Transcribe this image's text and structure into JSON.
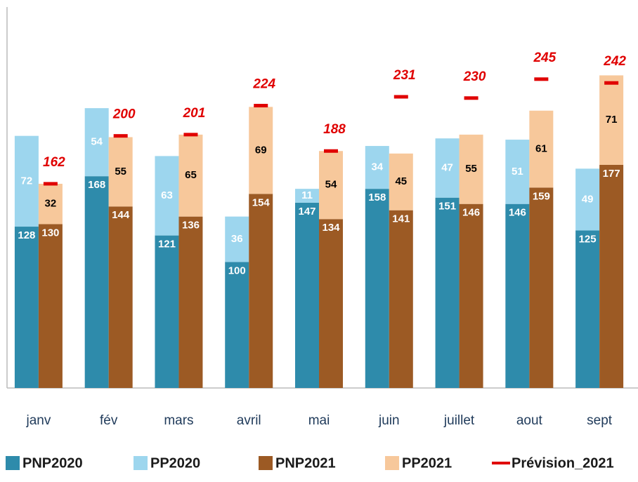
{
  "chart_data": {
    "type": "bar",
    "categories": [
      "janv",
      "fév",
      "mars",
      "avril",
      "mai",
      "juin",
      "juillet",
      "aout",
      "sept"
    ],
    "series": [
      {
        "name": "PNP2020",
        "color": "#2e8bab",
        "stack": "2020",
        "label_color": "#ffffff",
        "values": [
          128,
          168,
          121,
          100,
          147,
          158,
          151,
          146,
          125
        ]
      },
      {
        "name": "PP2020",
        "color": "#9dd6ee",
        "stack": "2020",
        "label_color": "#ffffff",
        "values": [
          72,
          54,
          63,
          36,
          11,
          34,
          47,
          51,
          49
        ]
      },
      {
        "name": "PNP2021",
        "color": "#9c5a24",
        "stack": "2021",
        "label_color": "#ffffff",
        "values": [
          130,
          144,
          136,
          154,
          134,
          141,
          146,
          159,
          177
        ]
      },
      {
        "name": "PP2021",
        "color": "#f7c89b",
        "stack": "2021",
        "label_color": "#000000",
        "values": [
          32,
          55,
          65,
          69,
          54,
          45,
          55,
          61,
          71
        ]
      },
      {
        "name": "Prévision_2021",
        "color": "#e00000",
        "stack": "2021",
        "style": "dash",
        "values": [
          162,
          200,
          201,
          224,
          188,
          231,
          230,
          245,
          242
        ]
      }
    ],
    "ylim": [
      0,
      300
    ]
  }
}
